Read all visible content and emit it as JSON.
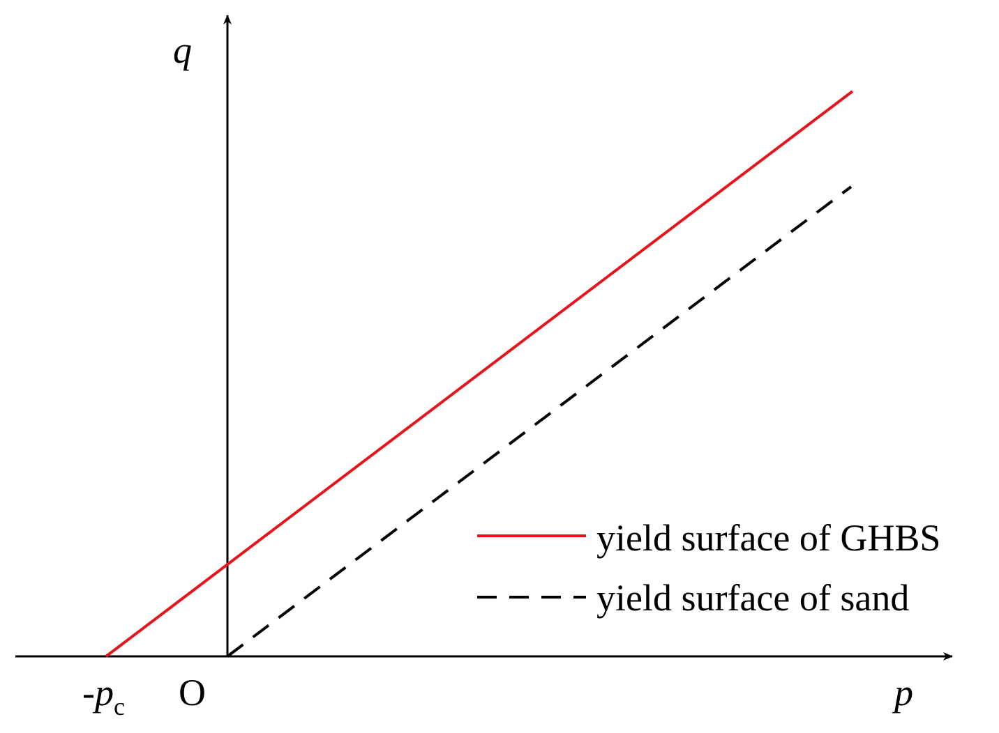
{
  "axes": {
    "y_label": "q",
    "x_label": "p",
    "origin": "O",
    "intercept_sign": "-",
    "intercept_symbol": "p",
    "intercept_subscript": "c"
  },
  "legend": [
    {
      "label": "yield surface of GHBS"
    },
    {
      "label": "yield surface of sand"
    }
  ]
}
